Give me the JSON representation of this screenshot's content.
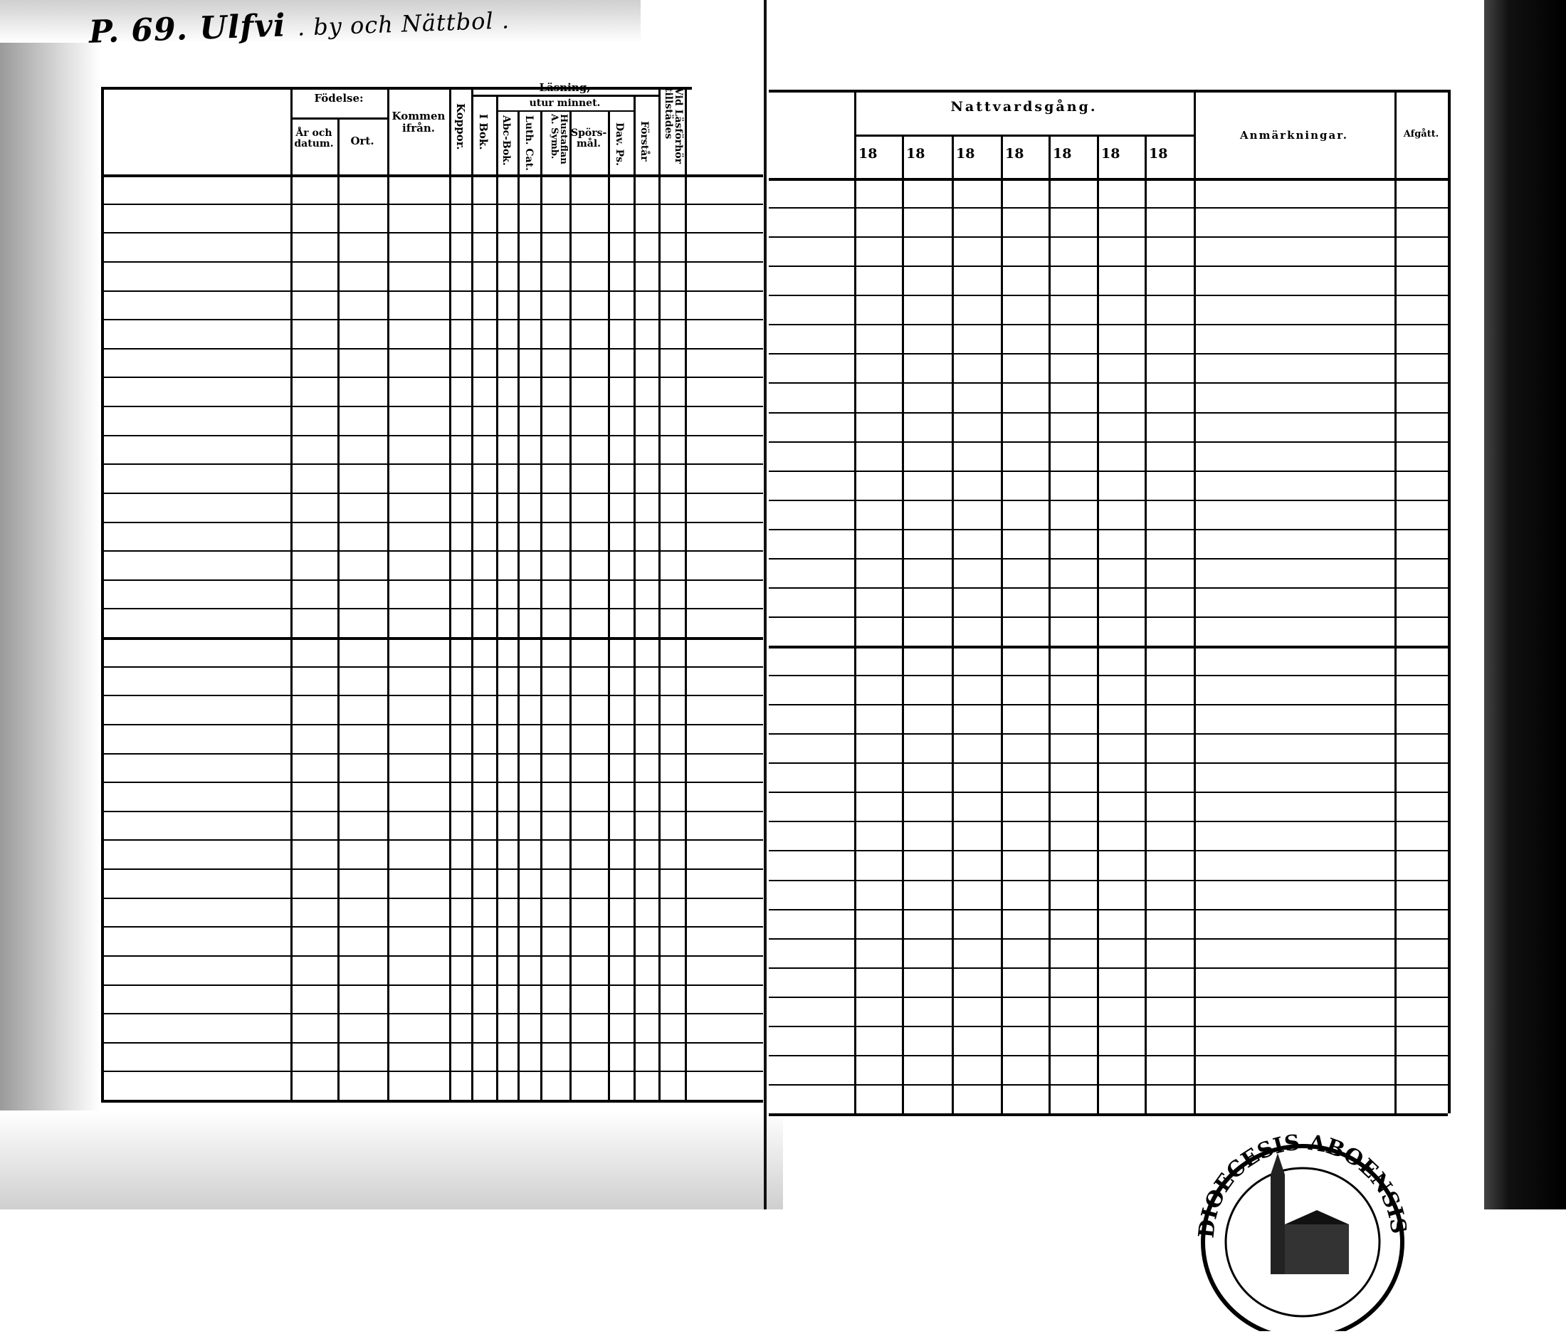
{
  "handwritten_title": {
    "page": "P. 69.",
    "village": "Ulfvi",
    "rest": ". by och Nättbol ."
  },
  "left_page": {
    "headers": {
      "fodelse": "Födelse:",
      "ar_och_datum": "År och datum.",
      "ort": "Ort.",
      "kommen_ifran": "Kommen ifrån.",
      "koppor": "Koppor.",
      "lasning": "Läsning,",
      "i_bok": "I Bok.",
      "utur_minnet": "utur minnet.",
      "abc_bok": "Abc-Bok.",
      "luth_cat": "Luth. Cat.",
      "hustaflan": "Hustaflan A. Symb.",
      "sporsmal": "Spörs-mål.",
      "dav_ps": "Dav. Ps.",
      "forstar": "Förstår",
      "vid_lasforhor": "Vid Läsförhör tillstädes"
    }
  },
  "right_page": {
    "headers": {
      "nattvardsgang": "Nattvardsgång.",
      "years": [
        "18",
        "18",
        "18",
        "18",
        "18",
        "18",
        "18"
      ],
      "anmarkningar": "Anmärkningar.",
      "afgatt": "Afgått."
    }
  },
  "stamp": {
    "text": "DIOECESIS ABOENSIS"
  }
}
